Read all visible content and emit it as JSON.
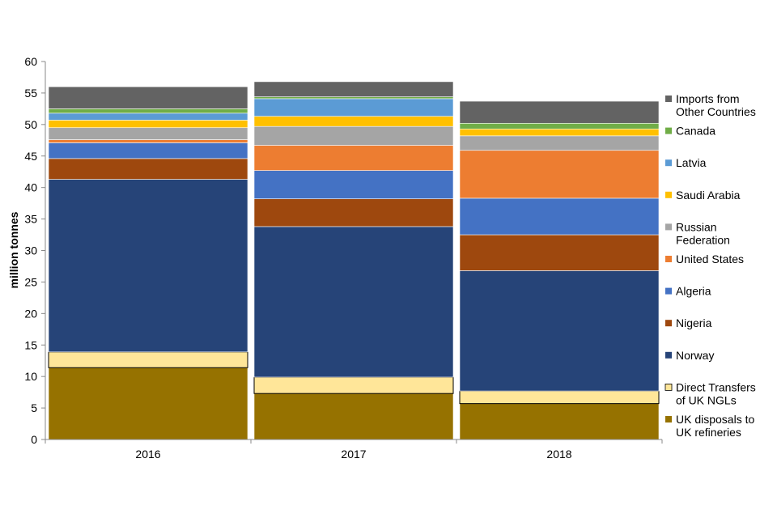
{
  "chart_data": {
    "type": "bar",
    "stacked": true,
    "title": "",
    "xlabel": "",
    "ylabel": "million tonnes",
    "ylim": [
      0,
      60
    ],
    "yticks": [
      0,
      5,
      10,
      15,
      20,
      25,
      30,
      35,
      40,
      45,
      50,
      55,
      60
    ],
    "categories": [
      "2016",
      "2017",
      "2018"
    ],
    "legend_position": "right",
    "series": [
      {
        "name": "UK disposals to UK refineries",
        "legend_lines": [
          "UK disposals to",
          "UK refineries"
        ],
        "color": "#967200",
        "values": [
          11.4,
          7.3,
          5.7
        ]
      },
      {
        "name": "Direct Transfers of UK NGLs",
        "legend_lines": [
          "Direct Transfers",
          "of UK NGLs"
        ],
        "color": "#FFE699",
        "outlined": true,
        "values": [
          2.5,
          2.6,
          2.0
        ]
      },
      {
        "name": "Norway",
        "legend_lines": [
          "Norway"
        ],
        "color": "#264478",
        "values": [
          27.4,
          23.9,
          19.1
        ]
      },
      {
        "name": "Nigeria",
        "legend_lines": [
          "Nigeria"
        ],
        "color": "#9E480E",
        "values": [
          3.3,
          4.4,
          5.7
        ]
      },
      {
        "name": "Algeria",
        "legend_lines": [
          "Algeria"
        ],
        "color": "#4472C4",
        "values": [
          2.5,
          4.5,
          5.8
        ]
      },
      {
        "name": "United States",
        "legend_lines": [
          "United States"
        ],
        "color": "#ED7D31",
        "values": [
          0.5,
          4.0,
          7.6
        ]
      },
      {
        "name": "Russian Federation",
        "legend_lines": [
          "Russian",
          "Federation"
        ],
        "color": "#A5A5A5",
        "values": [
          1.9,
          3.0,
          2.3
        ]
      },
      {
        "name": "Saudi Arabia",
        "legend_lines": [
          "Saudi Arabia"
        ],
        "color": "#FFC000",
        "values": [
          1.2,
          1.6,
          1.1
        ]
      },
      {
        "name": "Latvia",
        "legend_lines": [
          "Latvia"
        ],
        "color": "#5B9BD5",
        "values": [
          1.1,
          2.8,
          0.0
        ]
      },
      {
        "name": "Canada",
        "legend_lines": [
          "Canada"
        ],
        "color": "#70AD47",
        "values": [
          0.7,
          0.3,
          0.9
        ]
      },
      {
        "name": "Imports from Other Countries",
        "legend_lines": [
          "Imports from",
          "Other Countries"
        ],
        "color": "#636363",
        "values": [
          3.5,
          2.4,
          3.5
        ]
      }
    ]
  }
}
